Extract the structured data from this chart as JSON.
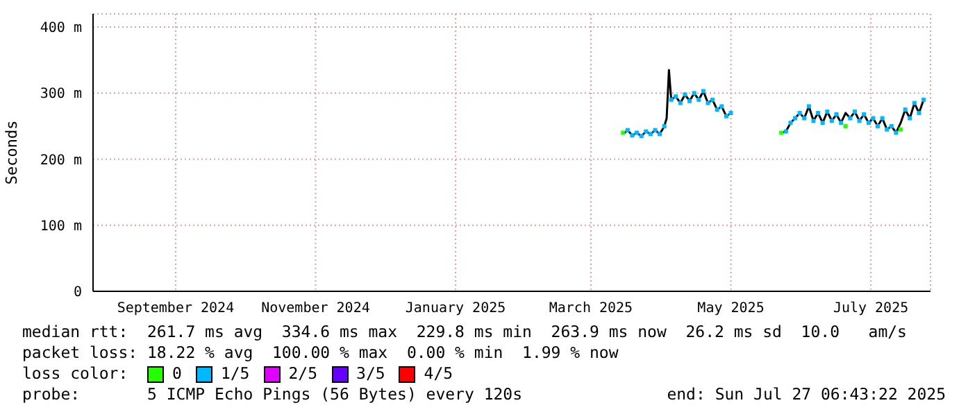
{
  "chart_data": {
    "type": "line",
    "ylabel": "Seconds",
    "legend_title": "loss color:",
    "legend": "bottom",
    "grid": true,
    "marker": "none",
    "xlim": [
      "2024-07-27",
      "2025-07-27"
    ],
    "xticks": [
      {
        "value": "2024-09-01",
        "label": "September 2024"
      },
      {
        "value": "2024-11-01",
        "label": "November 2024"
      },
      {
        "value": "2025-01-01",
        "label": "January 2025"
      },
      {
        "value": "2025-03-01",
        "label": "March 2025"
      },
      {
        "value": "2025-05-01",
        "label": "May 2025"
      },
      {
        "value": "2025-07-01",
        "label": "July 2025"
      }
    ],
    "ylim": [
      0,
      420
    ],
    "yticks": [
      0,
      {
        "value": 100,
        "label": "100 m"
      },
      {
        "value": 200,
        "label": "200 m"
      },
      {
        "value": 300,
        "label": "300 m"
      },
      {
        "value": 400,
        "label": "400 m"
      }
    ],
    "x": [
      "2025-03-15",
      "2025-03-17",
      "2025-03-19",
      "2025-03-21",
      "2025-03-23",
      "2025-03-25",
      "2025-03-27",
      "2025-03-29",
      "2025-03-31",
      "2025-04-02",
      "2025-04-03",
      "2025-04-04",
      "2025-04-05",
      "2025-04-07",
      "2025-04-09",
      "2025-04-11",
      "2025-04-13",
      "2025-04-15",
      "2025-04-17",
      "2025-04-19",
      "2025-04-21",
      "2025-04-23",
      "2025-04-25",
      "2025-04-27",
      "2025-04-29",
      "2025-05-01",
      "2025-05-10",
      "2025-05-23",
      "2025-05-25",
      "2025-05-27",
      "2025-05-29",
      "2025-05-31",
      "2025-06-02",
      "2025-06-04",
      "2025-06-06",
      "2025-06-08",
      "2025-06-10",
      "2025-06-12",
      "2025-06-14",
      "2025-06-16",
      "2025-06-18",
      "2025-06-20",
      "2025-06-22",
      "2025-06-24",
      "2025-06-26",
      "2025-06-28",
      "2025-06-30",
      "2025-07-02",
      "2025-07-04",
      "2025-07-06",
      "2025-07-08",
      "2025-07-10",
      "2025-07-12",
      "2025-07-14",
      "2025-07-16",
      "2025-07-18",
      "2025-07-20",
      "2025-07-22",
      "2025-07-24"
    ],
    "series": [
      {
        "color": "#000000",
        "values": [
          238,
          244,
          236,
          240,
          235,
          242,
          238,
          244,
          238,
          250,
          262,
          335,
          290,
          295,
          285,
          298,
          288,
          300,
          290,
          303,
          285,
          290,
          275,
          280,
          265,
          270,
          null,
          240,
          242,
          255,
          262,
          270,
          262,
          280,
          258,
          270,
          255,
          272,
          258,
          268,
          255,
          270,
          262,
          272,
          258,
          268,
          255,
          262,
          250,
          262,
          245,
          250,
          240,
          255,
          275,
          262,
          285,
          270,
          290
        ]
      },
      {
        "type": "scatter",
        "marker": "square",
        "name": "0",
        "color": "#26ff00",
        "values": [
          240,
          null,
          null,
          null,
          null,
          null,
          null,
          null,
          null,
          null,
          null,
          null,
          null,
          null,
          null,
          null,
          null,
          null,
          null,
          null,
          null,
          null,
          null,
          null,
          null,
          null,
          null,
          240,
          null,
          null,
          null,
          null,
          null,
          null,
          null,
          null,
          null,
          null,
          null,
          null,
          null,
          250,
          null,
          null,
          null,
          null,
          null,
          null,
          null,
          null,
          null,
          null,
          null,
          245,
          null,
          null,
          null,
          null,
          null
        ]
      },
      {
        "type": "scatter",
        "marker": "square",
        "name": "1/5",
        "color": "#00b8ff",
        "values": [
          null,
          244,
          236,
          240,
          235,
          242,
          238,
          244,
          238,
          250,
          null,
          null,
          290,
          295,
          285,
          298,
          288,
          300,
          290,
          303,
          285,
          290,
          275,
          280,
          265,
          270,
          null,
          null,
          242,
          255,
          262,
          270,
          262,
          280,
          258,
          270,
          255,
          272,
          258,
          268,
          255,
          null,
          262,
          272,
          258,
          268,
          255,
          262,
          250,
          262,
          245,
          250,
          240,
          null,
          275,
          262,
          285,
          270,
          290
        ]
      },
      {
        "type": "scatter",
        "marker": "square",
        "name": "2/5",
        "color": "#e000ff",
        "values": [
          null,
          null,
          null,
          null,
          null,
          null,
          null,
          null,
          null,
          null,
          null,
          null,
          null,
          null,
          null,
          null,
          null,
          null,
          null,
          null,
          null,
          null,
          null,
          null,
          null,
          null,
          null,
          null,
          null,
          null,
          null,
          null,
          null,
          null,
          null,
          null,
          null,
          null,
          null,
          null,
          null,
          null,
          null,
          null,
          null,
          null,
          null,
          null,
          null,
          null,
          null,
          null,
          null,
          null,
          null,
          null,
          null,
          null,
          null
        ]
      },
      {
        "type": "scatter",
        "marker": "square",
        "name": "3/5",
        "color": "#6600ff",
        "values": [
          null,
          null,
          null,
          null,
          null,
          null,
          null,
          null,
          null,
          null,
          null,
          null,
          null,
          null,
          null,
          null,
          null,
          null,
          null,
          null,
          null,
          null,
          null,
          null,
          null,
          null,
          null,
          null,
          null,
          null,
          null,
          null,
          null,
          null,
          null,
          null,
          null,
          null,
          null,
          null,
          null,
          null,
          null,
          null,
          null,
          null,
          null,
          null,
          null,
          null,
          null,
          null,
          null,
          null,
          null,
          null,
          null,
          null,
          null
        ]
      },
      {
        "type": "scatter",
        "marker": "square",
        "name": "4/5",
        "color": "#ff0000",
        "values": [
          null,
          null,
          null,
          null,
          null,
          null,
          null,
          null,
          null,
          null,
          null,
          null,
          null,
          null,
          null,
          null,
          null,
          null,
          null,
          null,
          null,
          null,
          null,
          null,
          null,
          null,
          null,
          null,
          null,
          null,
          null,
          null,
          null,
          null,
          null,
          null,
          null,
          null,
          null,
          null,
          null,
          null,
          null,
          null,
          null,
          null,
          null,
          null,
          null,
          null,
          null,
          null,
          null,
          null,
          null,
          null,
          null,
          null,
          null
        ]
      }
    ],
    "annotations": [
      "median rtt:  261.7 ms avg  334.6 ms max  229.8 ms min  263.9 ms now  26.2 ms sd  10.0   am/s",
      "packet loss: 18.22 % avg  100.00 % max  0.00 % min  1.99 % now",
      "probe:       5 ICMP Echo Pings (56 Bytes) every 120s",
      "end: Sun Jul 27 06:43:22 2025"
    ]
  }
}
